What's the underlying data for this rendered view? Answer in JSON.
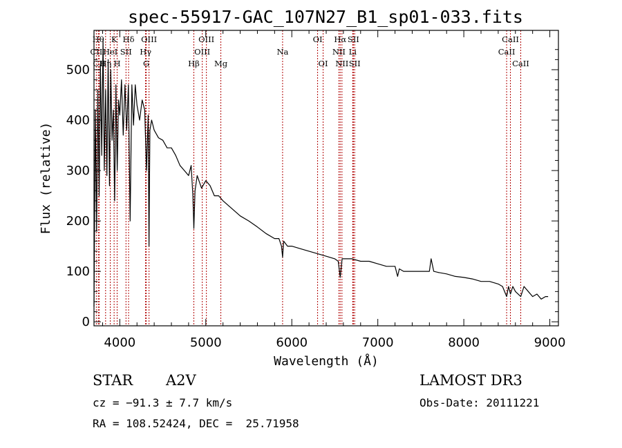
{
  "chart_data": {
    "type": "line",
    "title": "spec-55917-GAC_107N27_B1_sp01-033.fits",
    "xlabel": "Wavelength (Å)",
    "ylabel": "Flux (relative)",
    "xlim": [
      3700,
      9100
    ],
    "ylim": [
      -8,
      578
    ],
    "xticks": [
      4000,
      5000,
      6000,
      7000,
      8000,
      9000
    ],
    "yticks": [
      0,
      100,
      200,
      300,
      400,
      500
    ],
    "grid": false,
    "legend": "none",
    "series": [
      {
        "name": "spectrum",
        "x": [
          3700,
          3715,
          3730,
          3745,
          3760,
          3775,
          3790,
          3805,
          3820,
          3835,
          3850,
          3865,
          3880,
          3895,
          3910,
          3925,
          3940,
          3955,
          3970,
          3985,
          4000,
          4020,
          4040,
          4060,
          4080,
          4100,
          4120,
          4140,
          4160,
          4180,
          4200,
          4230,
          4260,
          4290,
          4310,
          4330,
          4340,
          4350,
          4370,
          4400,
          4450,
          4500,
          4550,
          4600,
          4650,
          4700,
          4750,
          4800,
          4830,
          4850,
          4861,
          4875,
          4900,
          4950,
          5000,
          5050,
          5100,
          5150,
          5200,
          5300,
          5400,
          5500,
          5600,
          5700,
          5800,
          5850,
          5880,
          5893,
          5905,
          5950,
          6000,
          6100,
          6200,
          6300,
          6400,
          6500,
          6540,
          6563,
          6585,
          6620,
          6700,
          6800,
          6900,
          7000,
          7100,
          7200,
          7230,
          7250,
          7300,
          7400,
          7500,
          7550,
          7600,
          7620,
          7650,
          7700,
          7800,
          7900,
          8000,
          8100,
          8200,
          8300,
          8400,
          8450,
          8498,
          8520,
          8542,
          8570,
          8600,
          8662,
          8700,
          8750,
          8800,
          8850,
          8900,
          8950,
          8980
        ],
        "values": [
          30,
          420,
          180,
          460,
          250,
          510,
          330,
          560,
          300,
          460,
          290,
          520,
          270,
          500,
          360,
          420,
          240,
          470,
          300,
          440,
          410,
          480,
          370,
          470,
          380,
          470,
          200,
          470,
          390,
          470,
          430,
          400,
          440,
          420,
          300,
          410,
          150,
          380,
          400,
          380,
          365,
          360,
          345,
          345,
          330,
          310,
          300,
          290,
          310,
          250,
          185,
          260,
          290,
          265,
          280,
          270,
          250,
          250,
          240,
          225,
          210,
          200,
          188,
          175,
          165,
          165,
          150,
          128,
          160,
          150,
          150,
          145,
          140,
          135,
          130,
          125,
          120,
          88,
          125,
          125,
          125,
          120,
          120,
          115,
          110,
          110,
          90,
          105,
          100,
          100,
          100,
          100,
          100,
          125,
          100,
          98,
          95,
          90,
          88,
          85,
          80,
          80,
          75,
          70,
          50,
          70,
          55,
          70,
          60,
          50,
          70,
          60,
          50,
          55,
          45,
          50,
          50
        ]
      }
    ],
    "lines": [
      {
        "label": "CII",
        "wavelength": 3727,
        "row": 2
      },
      {
        "label": "Hθ",
        "wavelength": 3750,
        "row": 1
      },
      {
        "label": "CII",
        "wavelength": 3760,
        "row": 3
      },
      {
        "label": "Hη",
        "wavelength": 3835,
        "row": 3
      },
      {
        "label": "HeI",
        "wavelength": 3889,
        "row": 2
      },
      {
        "label": "K",
        "wavelength": 3934,
        "row": 1
      },
      {
        "label": "H",
        "wavelength": 3969,
        "row": 3
      },
      {
        "label": "SII",
        "wavelength": 4072,
        "row": 2
      },
      {
        "label": "Hδ",
        "wavelength": 4102,
        "row": 1
      },
      {
        "label": "Hγ",
        "wavelength": 4300,
        "row": 2
      },
      {
        "label": "G",
        "wavelength": 4307,
        "row": 3
      },
      {
        "label": "OIII",
        "wavelength": 4340,
        "row": 1
      },
      {
        "label": "Hβ",
        "wavelength": 4861,
        "row": 3
      },
      {
        "label": "OIII",
        "wavelength": 4959,
        "row": 2
      },
      {
        "label": "OIII",
        "wavelength": 5007,
        "row": 1
      },
      {
        "label": "Mg",
        "wavelength": 5175,
        "row": 3
      },
      {
        "label": "Na",
        "wavelength": 5893,
        "row": 2
      },
      {
        "label": "OI",
        "wavelength": 6300,
        "row": 1
      },
      {
        "label": "OI",
        "wavelength": 6364,
        "row": 3
      },
      {
        "label": "NII",
        "wavelength": 6548,
        "row": 2
      },
      {
        "label": "Hα",
        "wavelength": 6563,
        "row": 1
      },
      {
        "label": "NII",
        "wavelength": 6583,
        "row": 3
      },
      {
        "label": "Li",
        "wavelength": 6708,
        "row": 2
      },
      {
        "label": "SII",
        "wavelength": 6716,
        "row": 1
      },
      {
        "label": "SII",
        "wavelength": 6731,
        "row": 3
      },
      {
        "label": "CaII",
        "wavelength": 8498,
        "row": 2
      },
      {
        "label": "CaII",
        "wavelength": 8542,
        "row": 1
      },
      {
        "label": "CaII",
        "wavelength": 8662,
        "row": 3
      }
    ]
  },
  "colors": {
    "spectrum": "#000000",
    "line_marker": "#b00000",
    "axis": "#000000"
  },
  "info": {
    "object_class": "STAR",
    "subclass": "A2V",
    "survey": "LAMOST DR3",
    "redshift": "cz = −91.3 ± 7.7 km/s",
    "obs_date": "Obs-Date: 20111221",
    "coords": "RA = 108.52424, DEC =  25.71958"
  }
}
